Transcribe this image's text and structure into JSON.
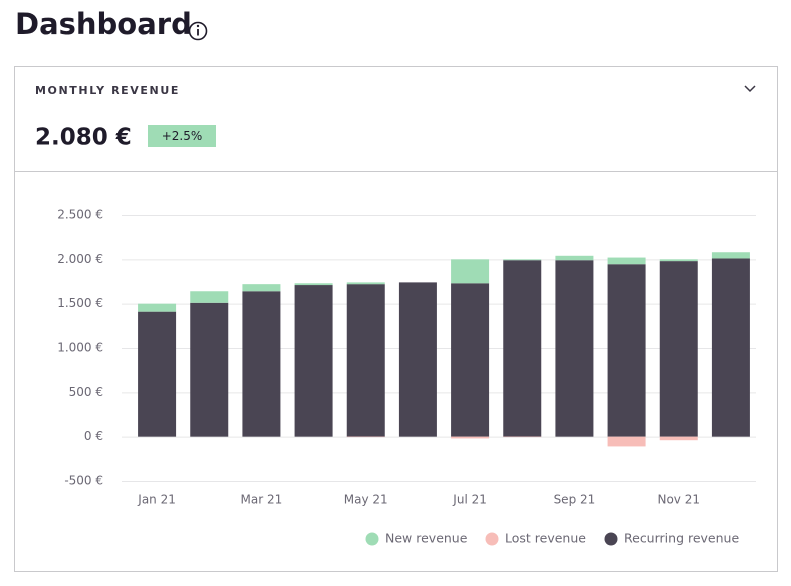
{
  "header": {
    "title": "Dashboard"
  },
  "card": {
    "title": "MONTHLY REVENUE",
    "value": "2.080 €",
    "change": "+2.5%"
  },
  "chart_data": {
    "type": "bar",
    "stacked": true,
    "categories": [
      "Jan 21",
      null,
      "Mar 21",
      null,
      "May 21",
      null,
      "Jul 21",
      null,
      "Sep 21",
      null,
      "Nov 21",
      null
    ],
    "series": [
      {
        "name": "New revenue",
        "color": "#9fdcb5",
        "values": [
          90,
          130,
          80,
          20,
          20,
          0,
          270,
          10,
          50,
          75,
          20,
          70
        ]
      },
      {
        "name": "Lost revenue",
        "color": "#f7bdb8",
        "values": [
          0,
          0,
          0,
          0,
          -5,
          0,
          -20,
          -5,
          0,
          -110,
          -40,
          0
        ]
      },
      {
        "name": "Recurring revenue",
        "color": "#4a4553",
        "values": [
          1410,
          1510,
          1640,
          1710,
          1720,
          1740,
          1730,
          1990,
          1990,
          1945,
          1980,
          2010
        ]
      }
    ],
    "ylim": [
      -500,
      2500
    ],
    "yticks": [
      {
        "value": -500,
        "label": "-500 €"
      },
      {
        "value": 0,
        "label": "0 €"
      },
      {
        "value": 500,
        "label": "500 €"
      },
      {
        "value": 1000,
        "label": "1.000 €"
      },
      {
        "value": 1500,
        "label": "1.500 €"
      },
      {
        "value": 2000,
        "label": "2.000 €"
      },
      {
        "value": 2500,
        "label": "2.500 €"
      }
    ],
    "grid": true,
    "legend": "bottom-right"
  }
}
